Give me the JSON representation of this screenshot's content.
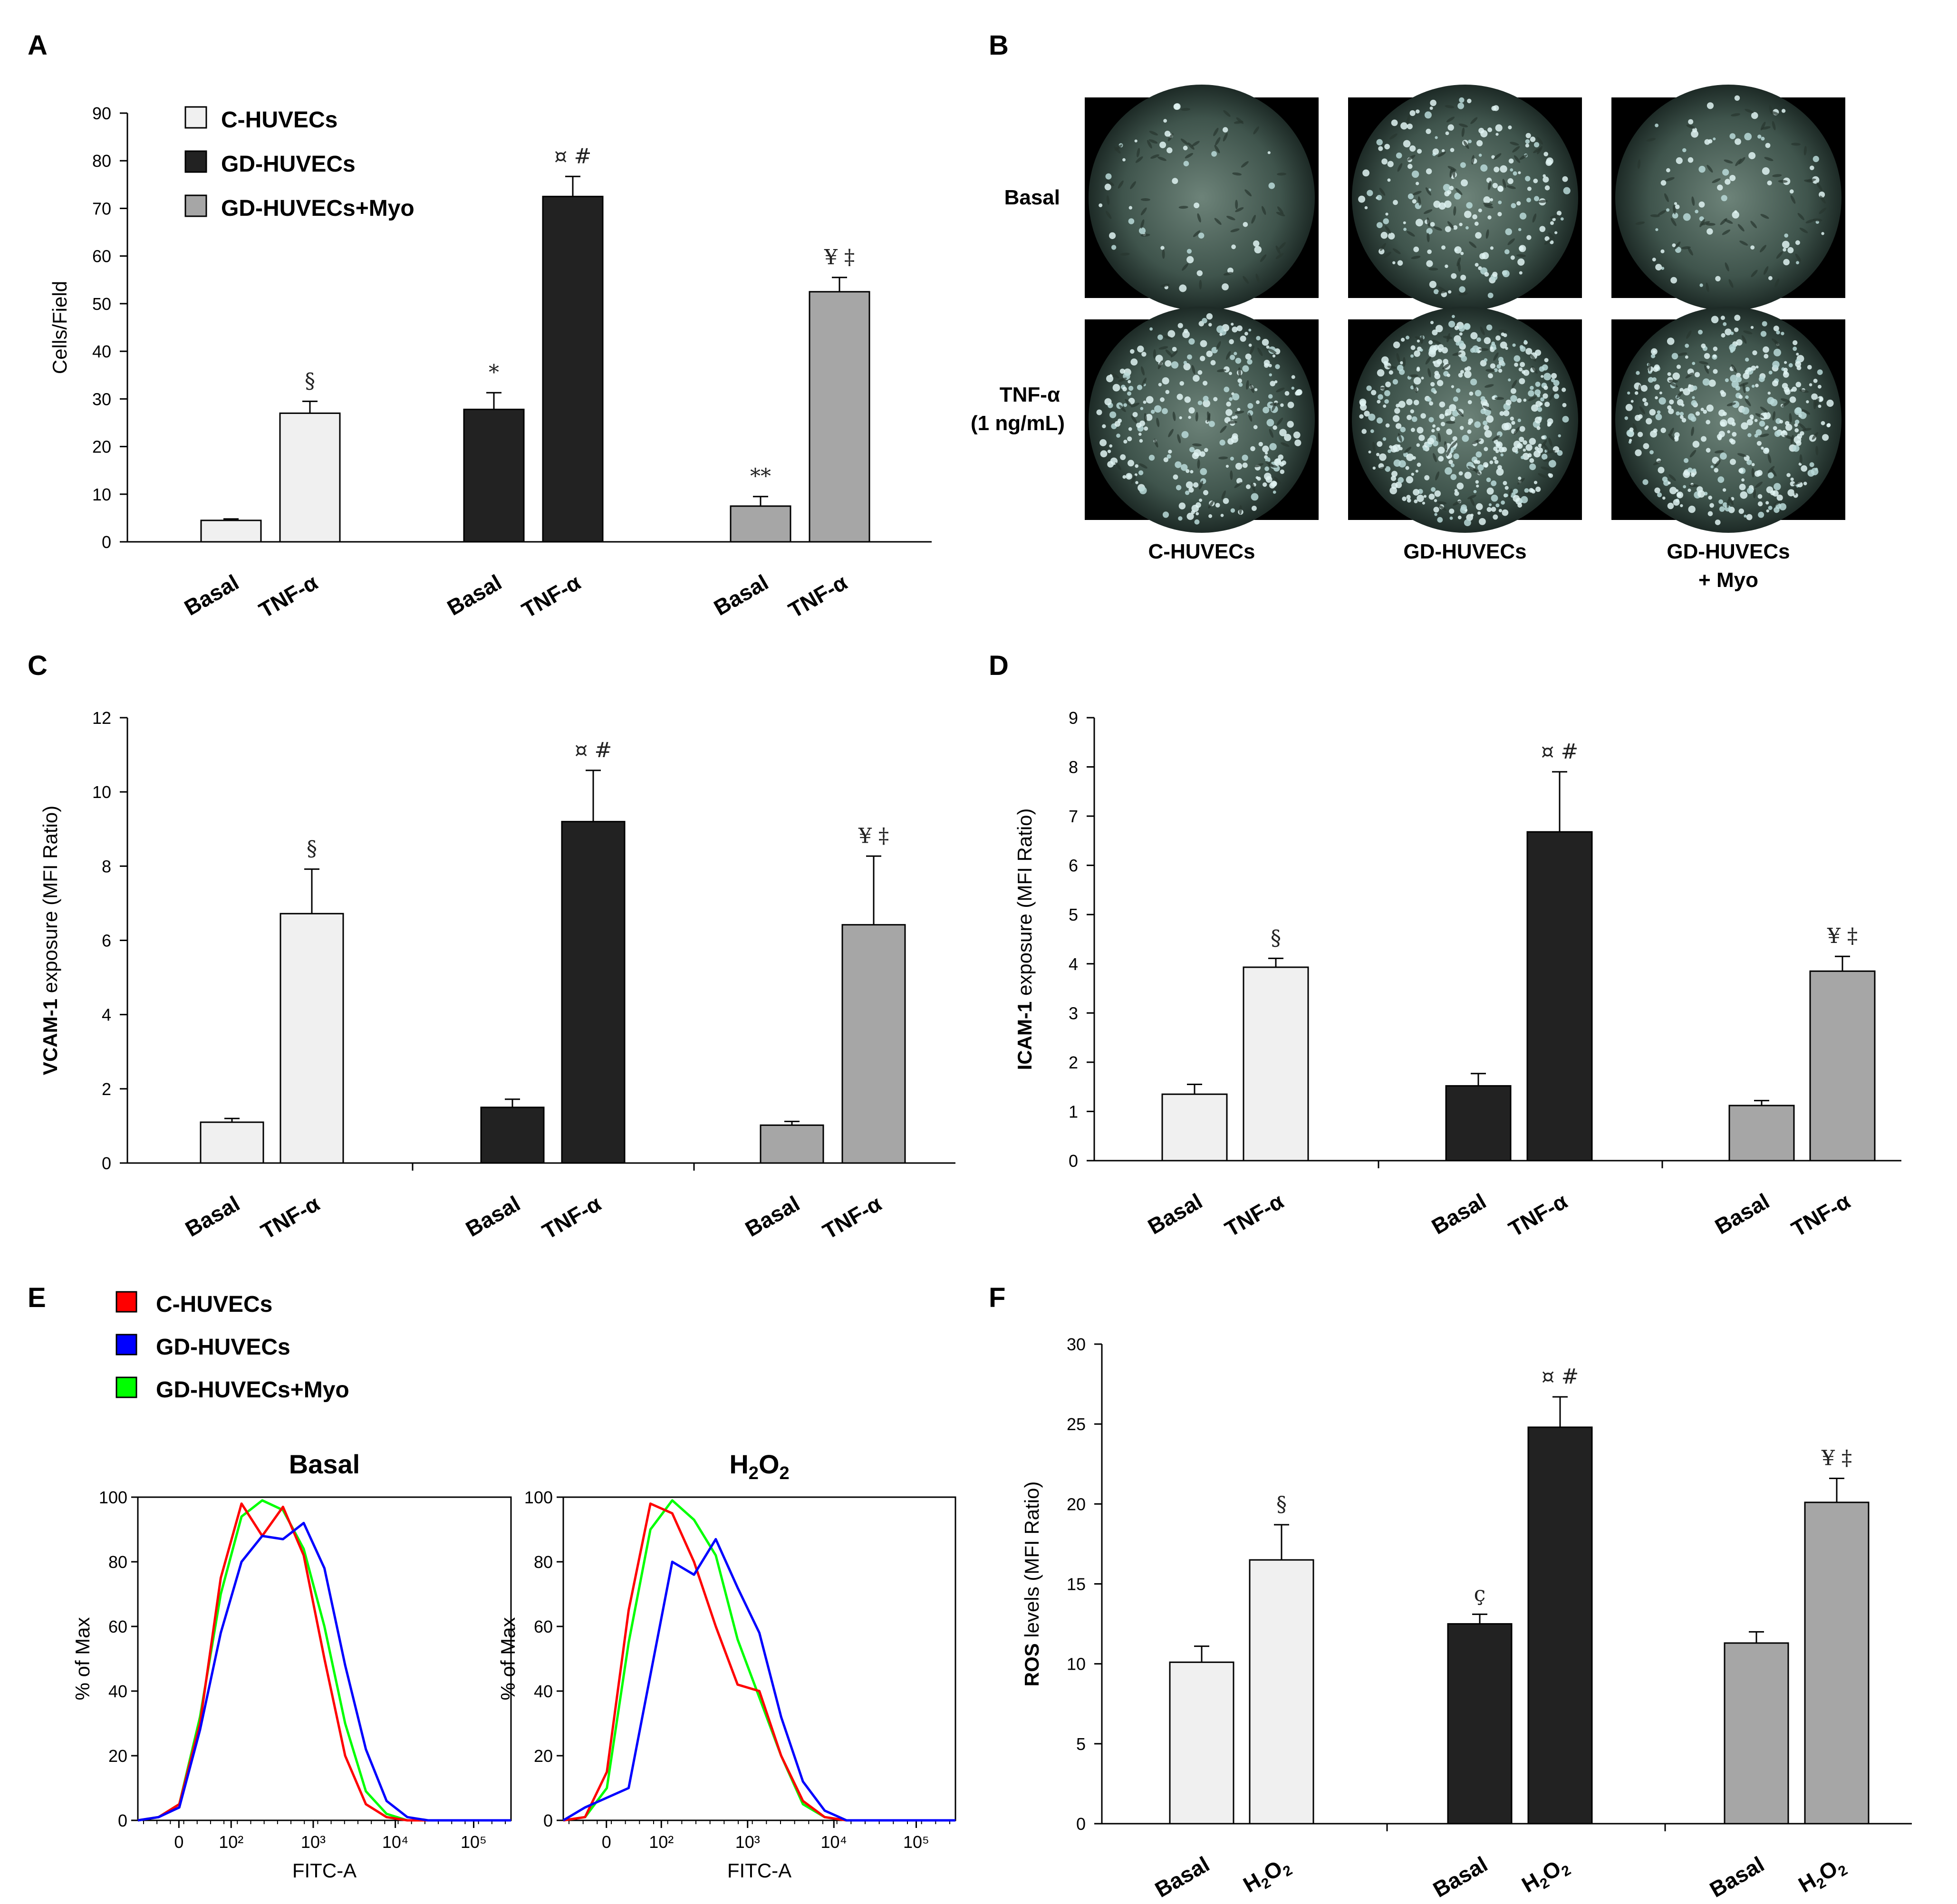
{
  "figure": {
    "panel_labels": {
      "A": "A",
      "B": "B",
      "C": "C",
      "D": "D",
      "E": "E",
      "F": "F"
    }
  },
  "legend": {
    "items": [
      {
        "label": "C-HUVECs",
        "color": "#f0f0f0"
      },
      {
        "label": "GD-HUVECs",
        "color": "#222222"
      },
      {
        "label": "GD-HUVECs+Myo",
        "color": "#a6a6a6"
      }
    ]
  },
  "panelB": {
    "rows": [
      {
        "label_lines": [
          "Basal"
        ]
      },
      {
        "label_lines": [
          "TNF-α",
          "(1 ng/mL)"
        ]
      }
    ],
    "columns": [
      {
        "label_lines": [
          "C-HUVECs"
        ]
      },
      {
        "label_lines": [
          "GD-HUVECs"
        ]
      },
      {
        "label_lines": [
          "GD-HUVECs",
          "+ Myo"
        ]
      }
    ]
  },
  "panelE": {
    "legend": [
      {
        "label": "C-HUVECs",
        "color": "#ff0000"
      },
      {
        "label": "GD-HUVECs",
        "color": "#0000ff"
      },
      {
        "label": "GD-HUVECs+Myo",
        "color": "#00ff00"
      }
    ]
  },
  "chart_data": [
    {
      "panel": "A",
      "type": "bar",
      "ylabel": "Cells/Field",
      "ylim": [
        0,
        90
      ],
      "yticks": [
        0,
        10,
        20,
        30,
        40,
        50,
        60,
        70,
        80,
        90
      ],
      "groups": [
        "C-HUVECs",
        "GD-HUVECs",
        "GD-HUVECs+Myo"
      ],
      "categories": [
        "Basal",
        "TNF-α"
      ],
      "series": [
        {
          "name": "C-HUVECs",
          "color": "#f0f0f0",
          "values": [
            4.5,
            27
          ],
          "errors": [
            0.3,
            2.5
          ],
          "annotations": [
            "",
            "§"
          ]
        },
        {
          "name": "GD-HUVECs",
          "color": "#222222",
          "values": [
            27.8,
            72.5
          ],
          "errors": [
            3.5,
            4.2
          ],
          "annotations": [
            "*",
            "¤ #"
          ]
        },
        {
          "name": "GD-HUVECs+Myo",
          "color": "#a6a6a6",
          "values": [
            7.5,
            52.5
          ],
          "errors": [
            2,
            3
          ],
          "annotations": [
            "**",
            "¥ ‡"
          ]
        }
      ]
    },
    {
      "panel": "C",
      "type": "bar",
      "ylabel_bold": "VCAM-1",
      "ylabel_rest": " exposure (MFI Ratio)",
      "ylim": [
        0,
        12
      ],
      "yticks": [
        0,
        2,
        4,
        6,
        8,
        10,
        12
      ],
      "categories": [
        "Basal",
        "TNF-α"
      ],
      "series": [
        {
          "name": "C-HUVECs",
          "color": "#f0f0f0",
          "values": [
            1.1,
            6.72
          ],
          "errors": [
            0.1,
            1.2
          ],
          "annotations": [
            "",
            "§"
          ]
        },
        {
          "name": "GD-HUVECs",
          "color": "#222222",
          "values": [
            1.5,
            9.2
          ],
          "errors": [
            0.22,
            1.38
          ],
          "annotations": [
            "",
            "¤ #"
          ]
        },
        {
          "name": "GD-HUVECs+Myo",
          "color": "#a6a6a6",
          "values": [
            1.02,
            6.42
          ],
          "errors": [
            0.1,
            1.85
          ],
          "annotations": [
            "",
            "¥ ‡"
          ]
        }
      ]
    },
    {
      "panel": "D",
      "type": "bar",
      "ylabel_bold": "ICAM-1",
      "ylabel_rest": " exposure (MFI Ratio)",
      "ylim": [
        0,
        9
      ],
      "yticks": [
        0,
        1,
        2,
        3,
        4,
        5,
        6,
        7,
        8,
        9
      ],
      "categories": [
        "Basal",
        "TNF-α"
      ],
      "series": [
        {
          "name": "C-HUVECs",
          "color": "#f0f0f0",
          "values": [
            1.35,
            3.93
          ],
          "errors": [
            0.2,
            0.18
          ],
          "annotations": [
            "",
            "§"
          ]
        },
        {
          "name": "GD-HUVECs",
          "color": "#222222",
          "values": [
            1.52,
            6.68
          ],
          "errors": [
            0.25,
            1.22
          ],
          "annotations": [
            "",
            "¤ #"
          ]
        },
        {
          "name": "GD-HUVECs+Myo",
          "color": "#a6a6a6",
          "values": [
            1.12,
            3.85
          ],
          "errors": [
            0.1,
            0.3
          ],
          "annotations": [
            "",
            "¥ ‡"
          ]
        }
      ]
    },
    {
      "panel": "F",
      "type": "bar",
      "ylabel_bold": "ROS",
      "ylabel_rest": " levels (MFI Ratio)",
      "ylim": [
        0,
        30
      ],
      "yticks": [
        0,
        5,
        10,
        15,
        20,
        25,
        30
      ],
      "categories": [
        "Basal",
        "H2O2"
      ],
      "series": [
        {
          "name": "C-HUVECs",
          "color": "#f0f0f0",
          "values": [
            10.1,
            16.5
          ],
          "errors": [
            1,
            2.2
          ],
          "annotations": [
            "",
            "§"
          ]
        },
        {
          "name": "GD-HUVECs",
          "color": "#222222",
          "values": [
            12.5,
            24.8
          ],
          "errors": [
            0.6,
            1.9
          ],
          "annotations": [
            "ç",
            "¤ #"
          ]
        },
        {
          "name": "GD-HUVECs+Myo",
          "color": "#a6a6a6",
          "values": [
            11.3,
            20.1
          ],
          "errors": [
            0.7,
            1.5
          ],
          "annotations": [
            "",
            "¥ ‡"
          ]
        }
      ]
    },
    {
      "panel": "E-basal",
      "type": "line",
      "title": "Basal",
      "xlabel": "FITC-A",
      "ylabel": "% of Max",
      "ylim": [
        0,
        100
      ],
      "yticks": [
        0,
        20,
        40,
        60,
        80,
        100
      ],
      "xticks": [
        "0",
        "10²",
        "10³",
        "10⁴",
        "10⁵"
      ],
      "x": [
        -1,
        0,
        1,
        2,
        3,
        4,
        5,
        6,
        7,
        8,
        9,
        10,
        11,
        12,
        13,
        14,
        15,
        16,
        17
      ],
      "series": [
        {
          "name": "C-HUVECs",
          "color": "#ff0000",
          "values": [
            0,
            1,
            5,
            30,
            75,
            98,
            88,
            97,
            82,
            50,
            20,
            5,
            1,
            0,
            0,
            0,
            0,
            0,
            0
          ]
        },
        {
          "name": "GD-HUVECs",
          "color": "#0000ff",
          "values": [
            0,
            1,
            4,
            28,
            58,
            80,
            88,
            87,
            92,
            78,
            48,
            22,
            6,
            1,
            0,
            0,
            0,
            0,
            0
          ]
        },
        {
          "name": "GD-HUVECs+Myo",
          "color": "#00ff00",
          "values": [
            0,
            1,
            5,
            32,
            70,
            94,
            99,
            96,
            84,
            60,
            30,
            9,
            2,
            0,
            0,
            0,
            0,
            0,
            0
          ]
        }
      ]
    },
    {
      "panel": "E-h2o2",
      "type": "line",
      "title_parts": [
        "H",
        "2",
        "O",
        "2"
      ],
      "xlabel": "FITC-A",
      "ylabel": "% of Max",
      "ylim": [
        0,
        100
      ],
      "yticks": [
        0,
        20,
        40,
        60,
        80,
        100
      ],
      "xticks": [
        "0",
        "10²",
        "10³",
        "10⁴",
        "10⁵"
      ],
      "x": [
        -1,
        0,
        1,
        2,
        3,
        4,
        5,
        6,
        7,
        8,
        9,
        10,
        11,
        12,
        13,
        14,
        15,
        16,
        17
      ],
      "series": [
        {
          "name": "C-HUVECs",
          "color": "#ff0000",
          "values": [
            0,
            1,
            15,
            65,
            98,
            95,
            80,
            60,
            42,
            40,
            20,
            6,
            1,
            0,
            0,
            0,
            0,
            0,
            0
          ]
        },
        {
          "name": "GD-HUVECs",
          "color": "#0000ff",
          "values": [
            0,
            4,
            7,
            10,
            45,
            80,
            76,
            87,
            72,
            58,
            32,
            12,
            3,
            0,
            0,
            0,
            0,
            0,
            0
          ]
        },
        {
          "name": "GD-HUVECs+Myo",
          "color": "#00ff00",
          "values": [
            0,
            1,
            10,
            55,
            90,
            99,
            93,
            82,
            56,
            38,
            20,
            5,
            1,
            0,
            0,
            0,
            0,
            0,
            0
          ]
        }
      ]
    }
  ]
}
